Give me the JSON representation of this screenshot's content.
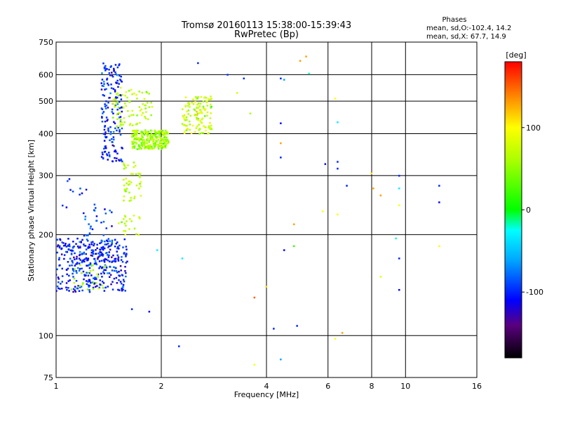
{
  "chart_data": {
    "type": "scatter",
    "title": "Tromsø 20160113 15:38:00-15:39:43",
    "subtitle": "RwPretec (Bp)",
    "phase_info": {
      "heading": "Phases",
      "line_o": "mean, sd,O:-102.4, 14.2",
      "line_x": "mean, sd,X:  67.7, 14.9"
    },
    "xlabel": "Frequency [MHz]",
    "ylabel": "Stationary phase Virtual Height [km]",
    "x_scale": "log",
    "y_scale": "log",
    "xlim": [
      1,
      16
    ],
    "ylim": [
      75,
      750
    ],
    "x_ticks": [
      1,
      2,
      4,
      6,
      8,
      10,
      16
    ],
    "x_tick_labels": [
      "1",
      "2",
      "4",
      "6",
      "8",
      "10",
      "16"
    ],
    "y_ticks": [
      75,
      100,
      200,
      300,
      400,
      500,
      600,
      750
    ],
    "y_tick_labels": [
      "75",
      "100",
      "200",
      "300",
      "400",
      "500",
      "600",
      "750"
    ],
    "grid": true,
    "colorbar": {
      "label": "[deg]",
      "range": [
        -180,
        180
      ],
      "ticks": [
        100,
        0,
        -100
      ],
      "tick_labels": [
        "100",
        "0",
        "-100"
      ],
      "stops": [
        {
          "value": -180,
          "color": "#000000"
        },
        {
          "value": -140,
          "color": "#5a0080"
        },
        {
          "value": -110,
          "color": "#0000ff"
        },
        {
          "value": -60,
          "color": "#00aaff"
        },
        {
          "value": -25,
          "color": "#00ffff"
        },
        {
          "value": 0,
          "color": "#00ff00"
        },
        {
          "value": 60,
          "color": "#aaff00"
        },
        {
          "value": 100,
          "color": "#ffff00"
        },
        {
          "value": 140,
          "color": "#ff8000"
        },
        {
          "value": 180,
          "color": "#ff0000"
        }
      ]
    },
    "series": [
      {
        "clusters": [
          {
            "f": [
              1.0,
              1.6
            ],
            "h": [
              135,
              195
            ],
            "phase": [
              -100,
              15
            ],
            "n": 360
          },
          {
            "f": [
              1.2,
              1.45
            ],
            "h": [
              160,
              240
            ],
            "phase": [
              -95,
              20
            ],
            "n": 50
          },
          {
            "f": [
              1.03,
              1.3
            ],
            "h": [
              240,
              295
            ],
            "phase": [
              -100,
              15
            ],
            "n": 12
          },
          {
            "f": [
              1.35,
              1.55
            ],
            "h": [
              330,
              650
            ],
            "phase": [
              -100,
              15
            ],
            "n": 170
          },
          {
            "f": [
              1.1,
              1.4
            ],
            "h": [
              135,
              165
            ],
            "phase": [
              60,
              12
            ],
            "n": 25
          }
        ],
        "points": [
          {
            "f": 2.25,
            "h": 93,
            "phase": -100
          },
          {
            "f": 1.65,
            "h": 120,
            "phase": -100
          },
          {
            "f": 1.85,
            "h": 118,
            "phase": -110
          },
          {
            "f": 2.55,
            "h": 650,
            "phase": -100
          },
          {
            "f": 3.1,
            "h": 600,
            "phase": -95
          },
          {
            "f": 3.45,
            "h": 585,
            "phase": -100
          },
          {
            "f": 4.4,
            "h": 585,
            "phase": -100
          },
          {
            "f": 4.4,
            "h": 430,
            "phase": -110
          },
          {
            "f": 4.4,
            "h": 340,
            "phase": -100
          },
          {
            "f": 4.5,
            "h": 180,
            "phase": -110
          },
          {
            "f": 4.2,
            "h": 105,
            "phase": -100
          },
          {
            "f": 4.9,
            "h": 107,
            "phase": -100
          },
          {
            "f": 4.4,
            "h": 85,
            "phase": -60
          },
          {
            "f": 5.9,
            "h": 325,
            "phase": -110
          },
          {
            "f": 6.4,
            "h": 330,
            "phase": -100
          },
          {
            "f": 6.4,
            "h": 315,
            "phase": -100
          },
          {
            "f": 6.4,
            "h": 433,
            "phase": -30
          },
          {
            "f": 6.8,
            "h": 280,
            "phase": -100
          },
          {
            "f": 9.6,
            "h": 300,
            "phase": -100
          },
          {
            "f": 9.6,
            "h": 275,
            "phase": -30
          },
          {
            "f": 9.6,
            "h": 170,
            "phase": -100
          },
          {
            "f": 9.6,
            "h": 137,
            "phase": -110
          },
          {
            "f": 12.5,
            "h": 280,
            "phase": -100
          },
          {
            "f": 12.5,
            "h": 250,
            "phase": -110
          },
          {
            "f": 1.95,
            "h": 180,
            "phase": -30
          },
          {
            "f": 2.3,
            "h": 170,
            "phase": -30
          },
          {
            "f": 5.3,
            "h": 605,
            "phase": -20
          },
          {
            "f": 9.4,
            "h": 195,
            "phase": -20
          },
          {
            "f": 4.5,
            "h": 580,
            "phase": -60
          }
        ]
      },
      {
        "clusters": [
          {
            "f": [
              1.65,
              2.1
            ],
            "h": [
              360,
              410
            ],
            "phase": [
              60,
              20
            ],
            "n": 260
          },
          {
            "f": [
              1.45,
              1.9
            ],
            "h": [
              420,
              550
            ],
            "phase": [
              65,
              15
            ],
            "n": 80
          },
          {
            "f": [
              1.55,
              1.75
            ],
            "h": [
              250,
              330
            ],
            "phase": [
              65,
              15
            ],
            "n": 45
          },
          {
            "f": [
              1.5,
              1.75
            ],
            "h": [
              200,
              230
            ],
            "phase": [
              70,
              12
            ],
            "n": 20
          },
          {
            "f": [
              2.3,
              2.8
            ],
            "h": [
              400,
              520
            ],
            "phase": [
              75,
              20
            ],
            "n": 130
          }
        ],
        "points": [
          {
            "f": 4.8,
            "h": 215,
            "phase": 130
          },
          {
            "f": 5.2,
            "h": 680,
            "phase": 130
          },
          {
            "f": 5.0,
            "h": 660,
            "phase": 130
          },
          {
            "f": 6.3,
            "h": 510,
            "phase": 100
          },
          {
            "f": 6.3,
            "h": 98,
            "phase": 100
          },
          {
            "f": 6.6,
            "h": 102,
            "phase": 130
          },
          {
            "f": 3.7,
            "h": 130,
            "phase": 150
          },
          {
            "f": 4.0,
            "h": 140,
            "phase": 110
          },
          {
            "f": 3.7,
            "h": 82,
            "phase": 100
          },
          {
            "f": 8.0,
            "h": 305,
            "phase": 110
          },
          {
            "f": 8.1,
            "h": 275,
            "phase": 130
          },
          {
            "f": 8.5,
            "h": 262,
            "phase": 130
          },
          {
            "f": 9.6,
            "h": 245,
            "phase": 100
          },
          {
            "f": 12.5,
            "h": 185,
            "phase": 100
          },
          {
            "f": 8.5,
            "h": 150,
            "phase": 90
          },
          {
            "f": 5.8,
            "h": 235,
            "phase": 100
          },
          {
            "f": 6.4,
            "h": 230,
            "phase": 100
          },
          {
            "f": 4.4,
            "h": 375,
            "phase": 130
          },
          {
            "f": 4.8,
            "h": 185,
            "phase": 20
          },
          {
            "f": 3.6,
            "h": 460,
            "phase": 60
          },
          {
            "f": 3.3,
            "h": 530,
            "phase": 80
          }
        ]
      }
    ]
  }
}
